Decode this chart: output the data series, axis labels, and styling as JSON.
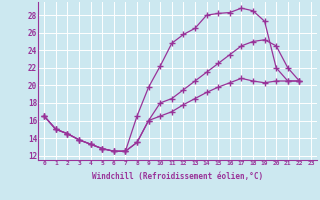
{
  "xlabel": "Windchill (Refroidissement éolien,°C)",
  "bg_color": "#cce8f0",
  "line_color": "#993399",
  "xlim": [
    -0.5,
    23.5
  ],
  "ylim": [
    11.5,
    29.5
  ],
  "yticks": [
    12,
    14,
    16,
    18,
    20,
    22,
    24,
    26,
    28
  ],
  "xticks": [
    0,
    1,
    2,
    3,
    4,
    5,
    6,
    7,
    8,
    9,
    10,
    11,
    12,
    13,
    14,
    15,
    16,
    17,
    18,
    19,
    20,
    21,
    22,
    23
  ],
  "line1_x": [
    0,
    1,
    2,
    3,
    4,
    5,
    6,
    7,
    8,
    9,
    10,
    11,
    12,
    13,
    14,
    15,
    16,
    17,
    18,
    19,
    20,
    21,
    22
  ],
  "line1_y": [
    16.5,
    15.0,
    14.5,
    13.8,
    13.3,
    12.8,
    12.5,
    12.5,
    16.5,
    19.8,
    22.2,
    24.8,
    25.8,
    26.5,
    28.0,
    28.2,
    28.3,
    28.8,
    28.5,
    27.3,
    22.0,
    20.5,
    20.5
  ],
  "line2_x": [
    0,
    1,
    2,
    3,
    4,
    5,
    6,
    7,
    8,
    9,
    10,
    11,
    12,
    13,
    14,
    15,
    16,
    17,
    18,
    19,
    20,
    21,
    22
  ],
  "line2_y": [
    16.5,
    15.0,
    14.5,
    13.8,
    13.3,
    12.8,
    12.5,
    12.5,
    13.5,
    16.0,
    18.0,
    18.5,
    19.5,
    20.5,
    21.5,
    22.5,
    23.5,
    24.5,
    25.0,
    25.2,
    24.5,
    22.0,
    20.5
  ],
  "line3_x": [
    0,
    1,
    2,
    3,
    4,
    5,
    6,
    7,
    8,
    9,
    10,
    11,
    12,
    13,
    14,
    15,
    16,
    17,
    18,
    19,
    20,
    21,
    22
  ],
  "line3_y": [
    16.5,
    15.0,
    14.5,
    13.8,
    13.3,
    12.8,
    12.5,
    12.5,
    13.5,
    16.0,
    16.5,
    17.0,
    17.8,
    18.5,
    19.2,
    19.8,
    20.3,
    20.8,
    20.5,
    20.3,
    20.5,
    20.5,
    20.5
  ]
}
